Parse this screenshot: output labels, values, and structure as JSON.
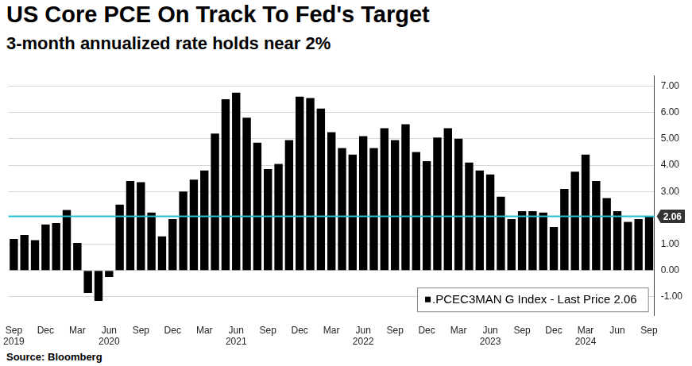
{
  "chart_data": {
    "type": "bar",
    "title": "US Core PCE On Track To Fed's Target",
    "subtitle": "3-month annualized rate holds near 2%",
    "source": "Source: Bloomberg",
    "categories": [
      [
        "Sep",
        "2019"
      ],
      null,
      null,
      "Dec",
      null,
      null,
      "Mar",
      null,
      null,
      [
        "Jun",
        "2020"
      ],
      null,
      null,
      "Sep",
      null,
      null,
      "Dec",
      null,
      null,
      "Mar",
      null,
      null,
      [
        "Jun",
        "2021"
      ],
      null,
      null,
      "Sep",
      null,
      null,
      "Dec",
      null,
      null,
      "Mar",
      null,
      null,
      [
        "Jun",
        "2022"
      ],
      null,
      null,
      "Sep",
      null,
      null,
      "Dec",
      null,
      null,
      "Mar",
      null,
      null,
      [
        "Jun",
        "2023"
      ],
      null,
      null,
      "Sep",
      null,
      null,
      "Dec",
      null,
      null,
      [
        "Mar",
        "2024"
      ],
      null,
      null,
      "Jun",
      null,
      null,
      "Sep"
    ],
    "series": [
      {
        "name": ".PCEC3MAN G Index - Last Price 2.06",
        "color": "#000000",
        "values": [
          1.2,
          1.35,
          1.15,
          1.75,
          1.8,
          2.3,
          1.05,
          -0.85,
          -1.15,
          -0.25,
          2.5,
          3.4,
          3.35,
          2.2,
          1.3,
          1.95,
          3.0,
          3.45,
          3.8,
          5.2,
          6.5,
          6.75,
          5.8,
          4.85,
          3.85,
          4.05,
          4.95,
          6.6,
          6.55,
          6.15,
          5.25,
          4.65,
          4.4,
          5.1,
          4.65,
          5.4,
          4.95,
          5.55,
          4.5,
          4.15,
          5.05,
          5.4,
          5.0,
          4.1,
          3.8,
          3.65,
          2.8,
          1.95,
          2.25,
          2.25,
          2.2,
          1.65,
          3.1,
          3.75,
          4.4,
          3.4,
          2.75,
          2.25,
          1.85,
          1.95,
          2.06
        ]
      }
    ],
    "reference_line": {
      "value": 2.06,
      "label": "2.06",
      "color": "#1fc2d4"
    },
    "ylim": [
      -1.7,
      7.4
    ],
    "yticks": [
      {
        "value": -1,
        "label": "-1.00"
      },
      {
        "value": 0,
        "label": "0.00"
      },
      {
        "value": 1,
        "label": "1.00"
      },
      {
        "value": 3,
        "label": "3.00"
      },
      {
        "value": 4,
        "label": "4.00"
      },
      {
        "value": 5,
        "label": "5.00"
      },
      {
        "value": 6,
        "label": "6.00"
      },
      {
        "value": 7,
        "label": "7.00"
      }
    ],
    "grid": true,
    "legend": "lower right"
  }
}
